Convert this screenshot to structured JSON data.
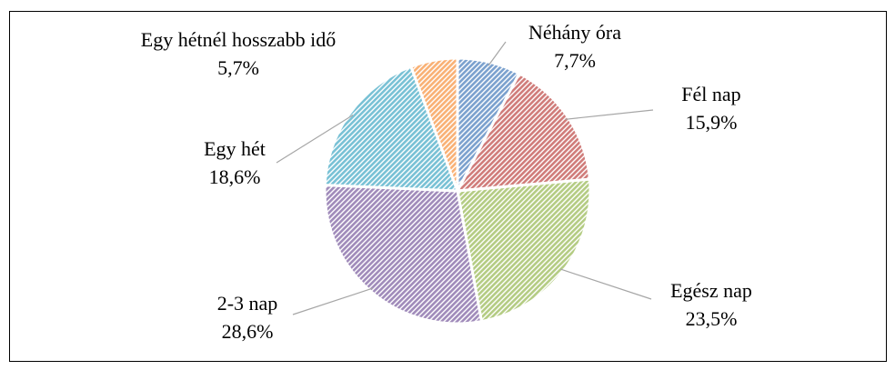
{
  "chart_data": {
    "type": "pie",
    "categories": [
      "Néhány óra",
      "Fél nap",
      "Egész nap",
      "2-3 nap",
      "Egy hét",
      "Egy hétnél hosszabb idő"
    ],
    "values": [
      7.7,
      15.9,
      23.5,
      28.6,
      18.6,
      5.7
    ],
    "value_labels": [
      "7,7%",
      "15,9%",
      "23,5%",
      "28,6%",
      "18,6%",
      "5,7%"
    ],
    "colors": [
      "#4f81bd",
      "#c0504d",
      "#9bbb59",
      "#8064a2",
      "#4bacc6",
      "#f79646"
    ]
  }
}
